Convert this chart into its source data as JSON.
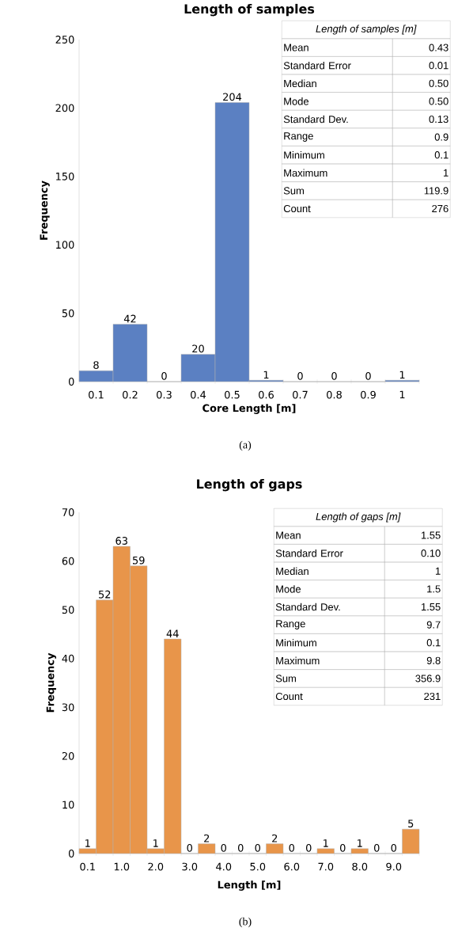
{
  "chart_data": [
    {
      "type": "bar",
      "title": "Length of samples",
      "xlabel": "Core Length [m]",
      "ylabel": "Frequency",
      "color": "#5b80c2",
      "data_labels": true,
      "categories": [
        "0.1",
        "0.2",
        "0.3",
        "0.4",
        "0.5",
        "0.6",
        "0.7",
        "0.8",
        "0.9",
        "1"
      ],
      "values": [
        8,
        42,
        0,
        20,
        204,
        1,
        0,
        0,
        0,
        1
      ],
      "ylim": [
        0,
        250
      ],
      "yticks": [
        0,
        50,
        100,
        150,
        200,
        250
      ],
      "annotations": [
        "(a)",
        "Length of samples [m]",
        "Mean",
        "0.43",
        "Standard Error",
        "0.01",
        "Median",
        "0.50",
        "Mode",
        "0.50",
        "Standard Dev.",
        "0.13",
        "Range",
        "0.9",
        "Minimum",
        "0.1",
        "Maximum",
        "1",
        "Sum",
        "119.9",
        "Count",
        "276"
      ]
    },
    {
      "type": "bar",
      "title": "Length of gaps",
      "xlabel": "Length [m]",
      "ylabel": "Frequency",
      "color": "#e8954a",
      "data_labels": true,
      "categories": [
        "0.1",
        null,
        "1.0",
        null,
        "2.0",
        null,
        "3.0",
        null,
        "4.0",
        null,
        "5.0",
        null,
        "6.0",
        null,
        "7.0",
        null,
        "8.0",
        null,
        "9.0",
        null
      ],
      "values": [
        1,
        52,
        63,
        59,
        1,
        44,
        0,
        2,
        0,
        0,
        0,
        2,
        0,
        0,
        1,
        0,
        1,
        0,
        0,
        5
      ],
      "ylim": [
        0,
        70
      ],
      "yticks": [
        0,
        10,
        20,
        30,
        40,
        50,
        60,
        70
      ],
      "annotations": [
        "(b)",
        "Length of gaps [m]",
        "Mean",
        "1.55",
        "Standard Error",
        "0.10",
        "Median",
        "1",
        "Mode",
        "1.5",
        "Standard Dev.",
        "1.55",
        "Range",
        "9.7",
        "Minimum",
        "0.1",
        "Maximum",
        "9.8",
        "Sum",
        "356.9",
        "Count",
        "231"
      ]
    }
  ]
}
